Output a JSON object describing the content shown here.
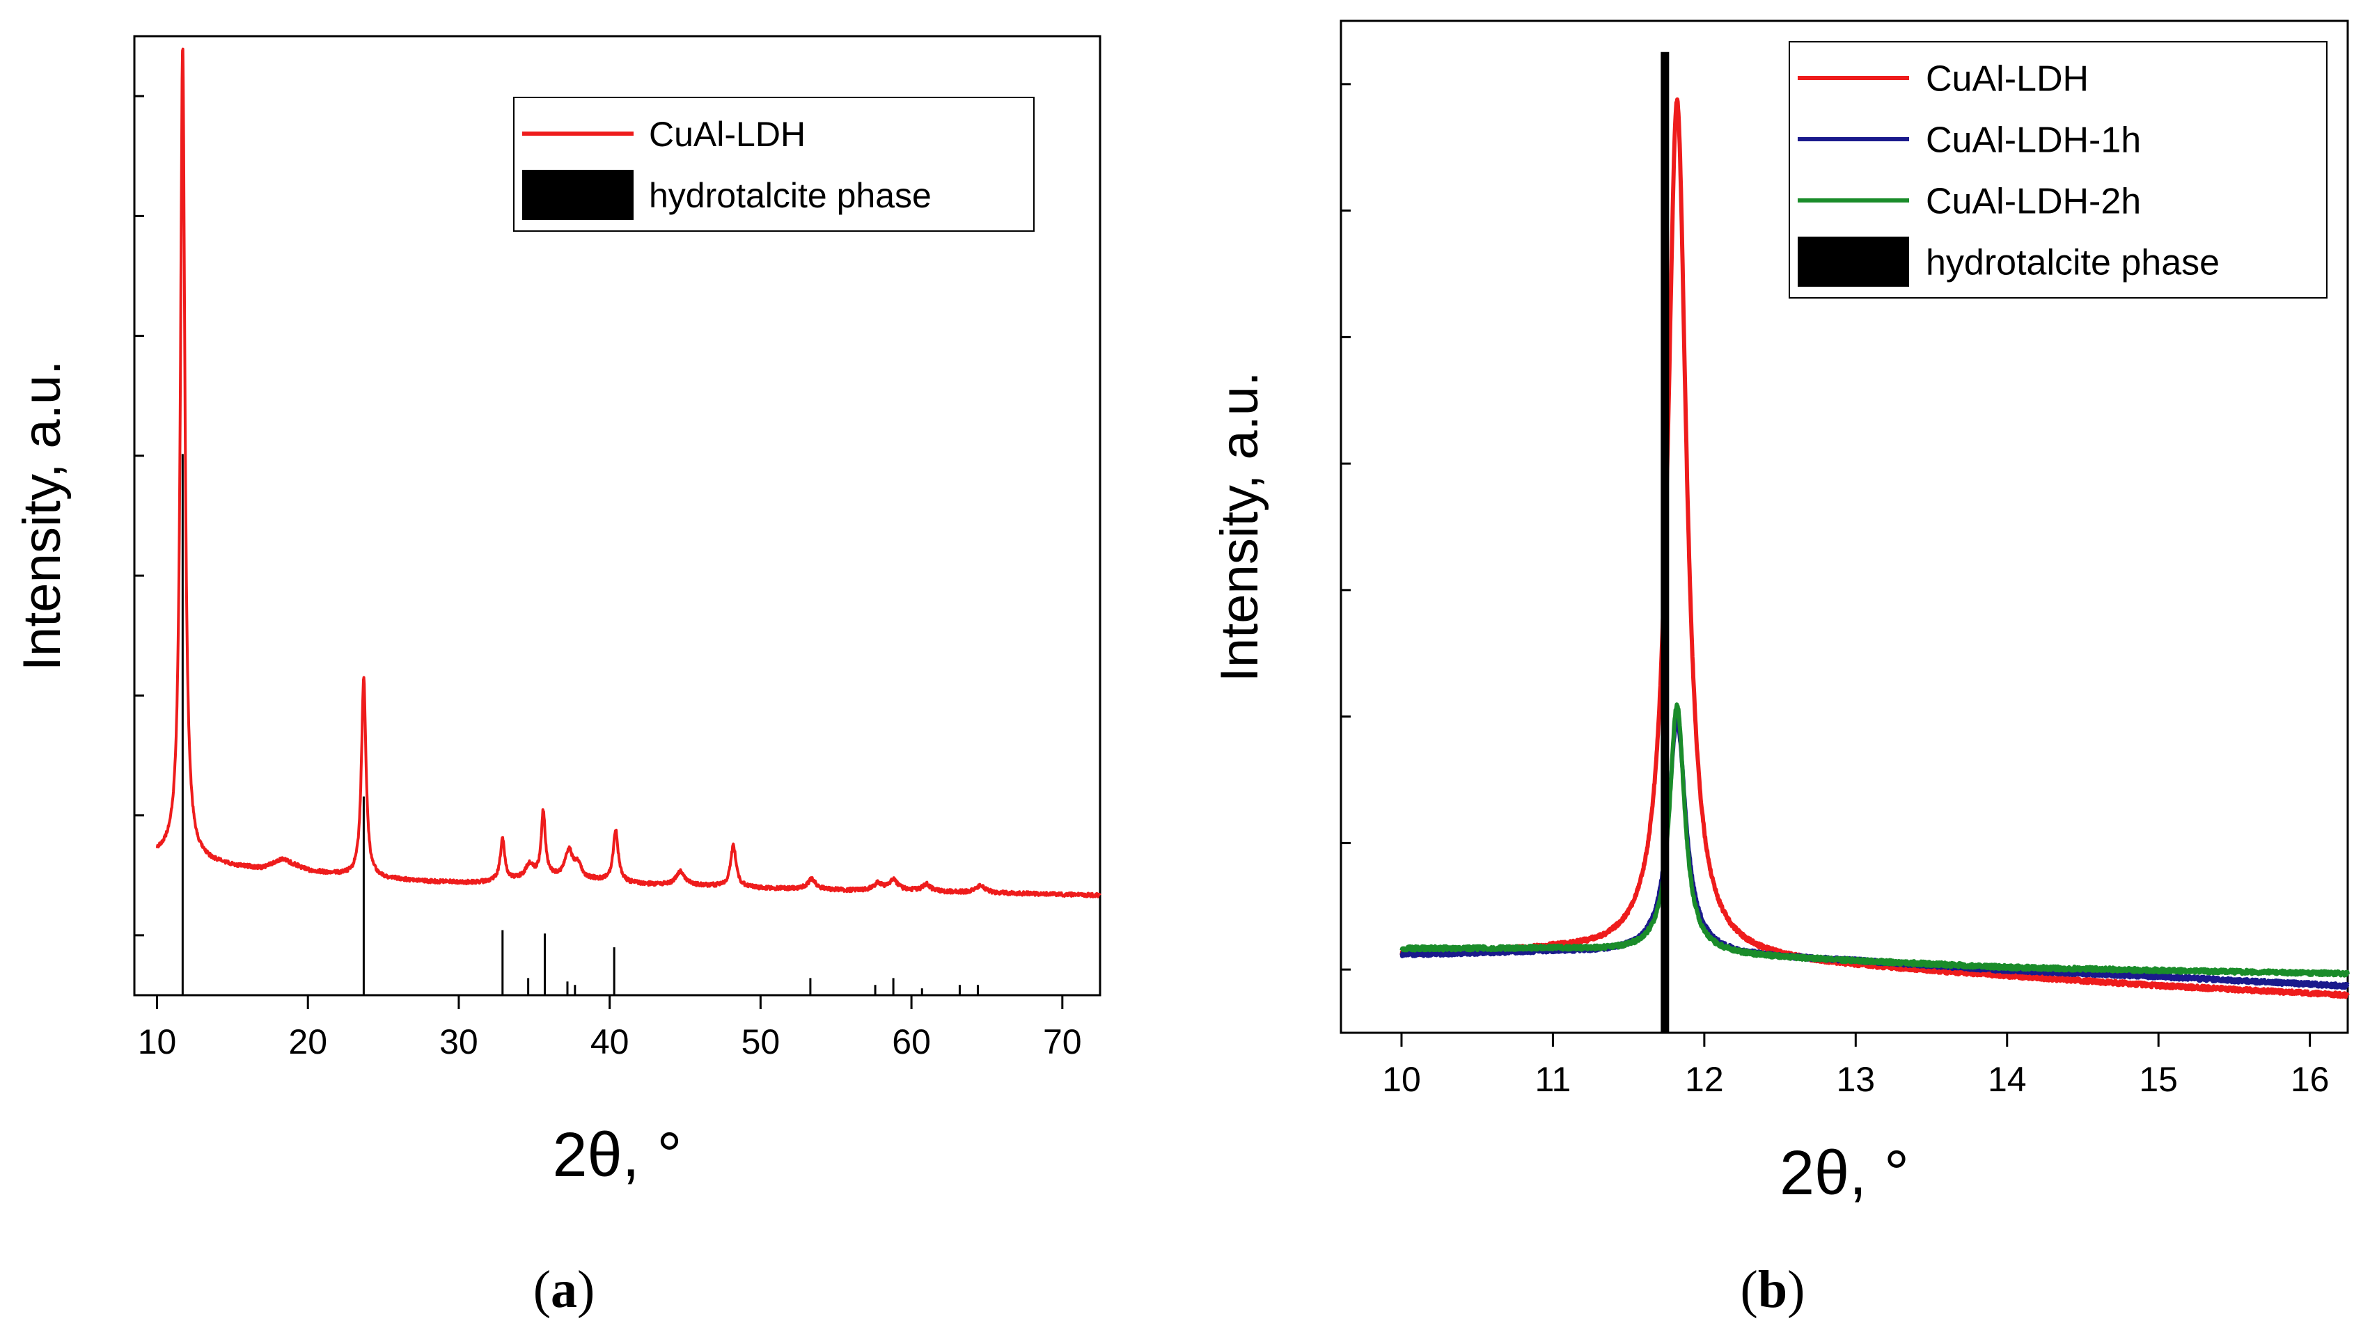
{
  "chart_data": [
    {
      "type": "line",
      "panel_label": "a",
      "title": "",
      "xlabel": "2θ, °",
      "ylabel": "Intensity, a.u.",
      "xlim": [
        8.5,
        72.5
      ],
      "ylim": [
        -8,
        132
      ],
      "x_ticks": [
        10,
        20,
        30,
        40,
        50,
        60,
        70
      ],
      "y_ticks_labeled": false,
      "legend_position": "top-right",
      "legend": [
        "CuAl-LDH",
        "hydrotalcite phase"
      ],
      "series": [
        {
          "name": "CuAl-LDH",
          "color": "#ee1c1c",
          "baseline": [
            [
              10,
              12.3
            ],
            [
              11,
              12.5
            ],
            [
              13,
              11.5
            ],
            [
              15,
              10.8
            ],
            [
              17,
              10.5
            ],
            [
              18.3,
              11.8
            ],
            [
              20,
              10.2
            ],
            [
              22,
              9.6
            ],
            [
              25,
              9
            ],
            [
              28,
              8.6
            ],
            [
              31,
              8.4
            ],
            [
              34,
              8.8
            ],
            [
              36,
              9.2
            ],
            [
              39,
              8.8
            ],
            [
              42,
              8.2
            ],
            [
              45,
              8.0
            ],
            [
              47,
              7.9
            ],
            [
              50,
              7.6
            ],
            [
              53,
              7.5
            ],
            [
              56,
              7.3
            ],
            [
              59,
              7.4
            ],
            [
              62,
              7.1
            ],
            [
              65,
              6.9
            ],
            [
              68,
              6.8
            ],
            [
              70,
              6.7
            ],
            [
              72,
              6.6
            ]
          ],
          "peaks": [
            [
              11.7,
              118.5,
              0.18
            ],
            [
              23.7,
              29,
              0.18
            ],
            [
              32.9,
              6,
              0.18
            ],
            [
              34.7,
              2,
              0.35
            ],
            [
              35.6,
              9.5,
              0.16
            ],
            [
              37.3,
              4,
              0.3
            ],
            [
              37.9,
              2,
              0.25
            ],
            [
              40.4,
              7.5,
              0.2
            ],
            [
              44.7,
              2,
              0.35
            ],
            [
              48.2,
              6,
              0.22
            ],
            [
              53.4,
              1.5,
              0.3
            ],
            [
              57.8,
              1,
              0.3
            ],
            [
              58.8,
              1.5,
              0.3
            ],
            [
              61.0,
              1,
              0.3
            ],
            [
              64.6,
              1,
              0.4
            ]
          ]
        },
        {
          "name": "hydrotalcite phase",
          "color": "#000000",
          "type": "stick",
          "sticks": [
            [
              11.7,
              79
            ],
            [
              23.7,
              29
            ],
            [
              32.9,
              9.5
            ],
            [
              34.6,
              2.5
            ],
            [
              35.7,
              9
            ],
            [
              37.2,
              2
            ],
            [
              37.7,
              1.5
            ],
            [
              40.3,
              7
            ],
            [
              53.3,
              2.5
            ],
            [
              57.6,
              1.5
            ],
            [
              58.8,
              2.5
            ],
            [
              60.7,
              1
            ],
            [
              63.2,
              1.5
            ],
            [
              64.4,
              1.5
            ]
          ]
        }
      ]
    },
    {
      "type": "line",
      "panel_label": "b",
      "title": "",
      "xlabel": "2θ, °",
      "ylabel": "Intensity, a.u.",
      "xlim": [
        9.6,
        16.25
      ],
      "ylim": [
        -1,
        31.5
      ],
      "x_ticks": [
        10,
        11,
        12,
        13,
        14,
        15,
        16
      ],
      "y_ticks_labeled": false,
      "legend_position": "top-right",
      "legend": [
        "CuAl-LDH",
        "CuAl-LDH-1h",
        "CuAl-LDH-2h",
        "hydrotalcite phase"
      ],
      "series": [
        {
          "name": "CuAl-LDH",
          "color": "#ee1c1c",
          "baseline": [
            [
              10,
              1.5
            ],
            [
              11,
              1.6
            ],
            [
              12,
              1.4
            ],
            [
              13,
              1.1
            ],
            [
              14,
              0.8
            ],
            [
              15,
              0.5
            ],
            [
              16.25,
              0.2
            ]
          ],
          "peaks": [
            [
              11.82,
              27.5,
              0.075
            ]
          ]
        },
        {
          "name": "CuAl-LDH-1h",
          "color": "#1a1a8c",
          "baseline": [
            [
              10,
              1.5
            ],
            [
              11,
              1.6
            ],
            [
              12,
              1.5
            ],
            [
              13,
              1.3
            ],
            [
              14,
              1.0
            ],
            [
              15,
              0.8
            ],
            [
              16.25,
              0.5
            ]
          ],
          "peaks": [
            [
              11.82,
              7.5,
              0.07
            ]
          ]
        },
        {
          "name": "CuAl-LDH-2h",
          "color": "#1a8c2a",
          "baseline": [
            [
              10,
              1.7
            ],
            [
              11,
              1.7
            ],
            [
              12,
              1.5
            ],
            [
              13,
              1.3
            ],
            [
              14,
              1.1
            ],
            [
              15,
              1.0
            ],
            [
              16.25,
              0.9
            ]
          ],
          "peaks": [
            [
              11.82,
              8.0,
              0.06
            ]
          ]
        },
        {
          "name": "hydrotalcite phase",
          "color": "#000000",
          "type": "stick",
          "sticks": [
            [
              11.74,
              31.5
            ]
          ]
        }
      ]
    }
  ],
  "captions": [
    "a",
    "b"
  ]
}
